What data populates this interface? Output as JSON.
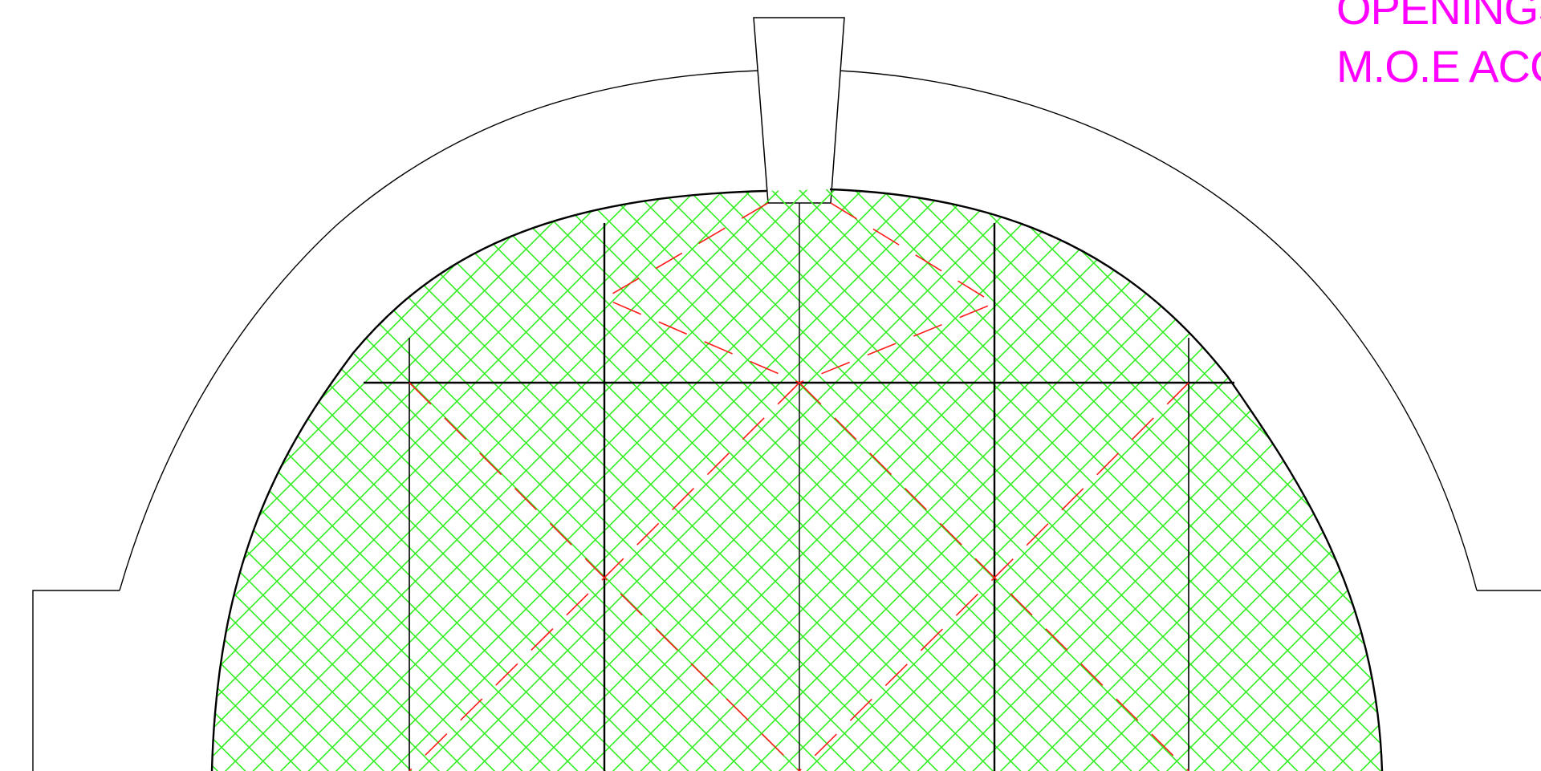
{
  "drawing": {
    "annotations": [
      {
        "text": "OPENINGS"
      },
      {
        "text": "M.O.E ACC"
      }
    ],
    "colors": {
      "background": "#ffffff",
      "outline": "#000000",
      "hatch": "#33ee22",
      "swing_lines": "#ff1a1a",
      "annotation": "#ff00ff"
    },
    "hatch_pattern": "cross-hatch-45-degrees",
    "swing_line_style": "dashed"
  }
}
